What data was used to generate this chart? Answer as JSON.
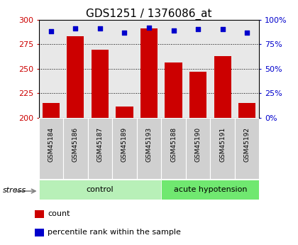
{
  "title": "GDS1251 / 1376086_at",
  "samples": [
    "GSM45184",
    "GSM45186",
    "GSM45187",
    "GSM45189",
    "GSM45193",
    "GSM45188",
    "GSM45190",
    "GSM45191",
    "GSM45192"
  ],
  "counts": [
    215,
    283,
    269,
    211,
    291,
    256,
    247,
    263,
    215
  ],
  "percentiles": [
    88,
    91,
    91,
    87,
    92,
    89,
    90,
    90,
    87
  ],
  "groups": [
    "control",
    "control",
    "control",
    "control",
    "control",
    "acute hypotension",
    "acute hypotension",
    "acute hypotension",
    "acute hypotension"
  ],
  "group_colors": {
    "control": "#b8f0b8",
    "acute hypotension": "#70e870"
  },
  "bar_color": "#cc0000",
  "dot_color": "#0000cc",
  "ylim_left": [
    200,
    300
  ],
  "ylim_right": [
    0,
    100
  ],
  "yticks_left": [
    200,
    225,
    250,
    275,
    300
  ],
  "yticks_right": [
    0,
    25,
    50,
    75,
    100
  ],
  "ytick_labels_right": [
    "0%",
    "25%",
    "50%",
    "75%",
    "100%"
  ],
  "bg_color": "#ffffff",
  "plot_bg_color": "#e8e8e8",
  "xlabel_bg": "#d0d0d0",
  "stress_label": "stress",
  "legend_count": "count",
  "legend_percentile": "percentile rank within the sample",
  "title_fontsize": 11,
  "axis_label_color_left": "#cc0000",
  "axis_label_color_right": "#0000cc",
  "bar_width": 0.7
}
